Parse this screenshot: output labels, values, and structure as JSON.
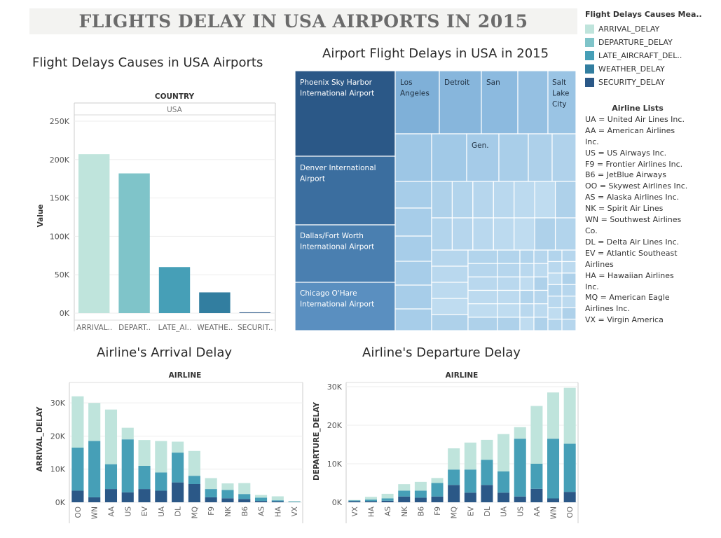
{
  "dashboard_title": "FLIGHTS DELAY IN USA AIRPORTS IN 2015",
  "colors": {
    "ARRIVAL_DELAY": "#bfe4dc",
    "DEPARTURE_DELAY": "#7fc4c9",
    "LATE_AIRCRAFT_DELAY": "#469fb7",
    "WEATHER_DELAY": "#327ea0",
    "SECURITY_DELAY": "#2b5887"
  },
  "legend": {
    "title": "Flight Delays Causes Mea..",
    "items": [
      "ARRIVAL_DELAY",
      "DEPARTURE_DELAY",
      "LATE_AIRCRAFT_DEL..",
      "WEATHER_DELAY",
      "SECURITY_DELAY"
    ]
  },
  "airline_list": {
    "title": "Airline Lists",
    "lines": [
      "UA = United Air Lines Inc.",
      "AA = American Airlines",
      "Inc.",
      "US = US Airways Inc.",
      "F9 = Frontier Airlines Inc.",
      "B6 = JetBlue Airways",
      "OO = Skywest Airlines Inc.",
      "AS = Alaska Airlines Inc.",
      "NK = Spirit Air Lines",
      "WN = Southwest Airlines",
      "Co.",
      "DL = Delta Air Lines Inc.",
      "EV = Atlantic Southeast",
      "Airlines",
      "HA = Hawaiian Airlines",
      "Inc.",
      "MQ = American Eagle",
      "Airlines Inc.",
      "VX = Virgin America"
    ]
  },
  "chart_data": [
    {
      "type": "bar",
      "title": "Flight Delays Causes in USA Airports",
      "column_header": "COUNTRY",
      "column_value": "USA",
      "ylabel": "Value",
      "ylim": [
        0,
        250000
      ],
      "yticks": [
        0,
        50000,
        100000,
        150000,
        200000,
        250000
      ],
      "ytick_labels": [
        "0K",
        "50K",
        "100K",
        "150K",
        "200K",
        "250K"
      ],
      "categories": [
        "ARRIVAL..",
        "DEPART..",
        "LATE_AI..",
        "WEATHE..",
        "SECURIT.."
      ],
      "values": [
        207000,
        182000,
        60000,
        27000,
        1000
      ],
      "grid": true
    },
    {
      "type": "treemap",
      "title": "Airport Flight Delays in USA in 2015",
      "labeled_cells": [
        "Phoenix Sky Harbor International Airport",
        "Denver International Airport",
        "Dallas/Fort Worth International Airport",
        "Chicago O'Hare International Airport",
        "Los Angeles",
        "Detroit",
        "San",
        "Salt Lake City",
        "Gen."
      ]
    },
    {
      "type": "bar",
      "stacked": true,
      "title": "Airline's Arrival Delay",
      "column_header": "AIRLINE",
      "ylabel": "ARRIVAL_DELAY",
      "ylim": [
        0,
        33000
      ],
      "yticks": [
        0,
        10000,
        20000,
        30000
      ],
      "ytick_labels": [
        "0K",
        "10K",
        "20K",
        "30K"
      ],
      "categories": [
        "OO",
        "WN",
        "AA",
        "US",
        "EV",
        "UA",
        "DL",
        "MQ",
        "F9",
        "NK",
        "B6",
        "AS",
        "HA",
        "VX"
      ],
      "series": [
        {
          "name": "SECURITY_DELAY",
          "values": [
            3500,
            1500,
            4000,
            3000,
            4000,
            3500,
            6000,
            5500,
            1500,
            1200,
            1000,
            400,
            300,
            50
          ]
        },
        {
          "name": "LATE_AIRCRAFT_DELAY",
          "values": [
            13000,
            17000,
            7500,
            16000,
            7000,
            5500,
            9000,
            2500,
            2500,
            2500,
            1500,
            1000,
            300,
            150
          ]
        },
        {
          "name": "ARRIVAL_DELAY",
          "values": [
            15500,
            11500,
            16500,
            3500,
            7800,
            9500,
            3300,
            7500,
            3300,
            2000,
            3300,
            800,
            1200,
            200
          ]
        }
      ],
      "grid": true
    },
    {
      "type": "bar",
      "stacked": true,
      "title": "Airline's Departure Delay",
      "column_header": "AIRLINE",
      "ylabel": "DEPARTURE_DELAY",
      "ylim": [
        0,
        30000
      ],
      "yticks": [
        0,
        10000,
        20000,
        30000
      ],
      "ytick_labels": [
        "0K",
        "10K",
        "20K",
        "30K"
      ],
      "categories": [
        "VX",
        "HA",
        "AS",
        "NK",
        "B6",
        "F9",
        "MQ",
        "EV",
        "DL",
        "UA",
        "US",
        "AA",
        "WN",
        "OO"
      ],
      "series": [
        {
          "name": "SECURITY_DELAY",
          "values": [
            300,
            300,
            400,
            1500,
            1200,
            1500,
            4500,
            2500,
            4500,
            2500,
            1500,
            3500,
            1000,
            2700
          ]
        },
        {
          "name": "LATE_AIRCRAFT_DELAY",
          "values": [
            200,
            400,
            600,
            1500,
            1800,
            3500,
            4000,
            6000,
            6500,
            5500,
            15000,
            6500,
            15500,
            12500
          ]
        },
        {
          "name": "ARRIVAL_DELAY",
          "values": [
            100,
            700,
            1200,
            1700,
            2300,
            1300,
            5500,
            7000,
            5200,
            9700,
            3000,
            15000,
            12000,
            14500
          ]
        }
      ],
      "grid": true
    }
  ]
}
